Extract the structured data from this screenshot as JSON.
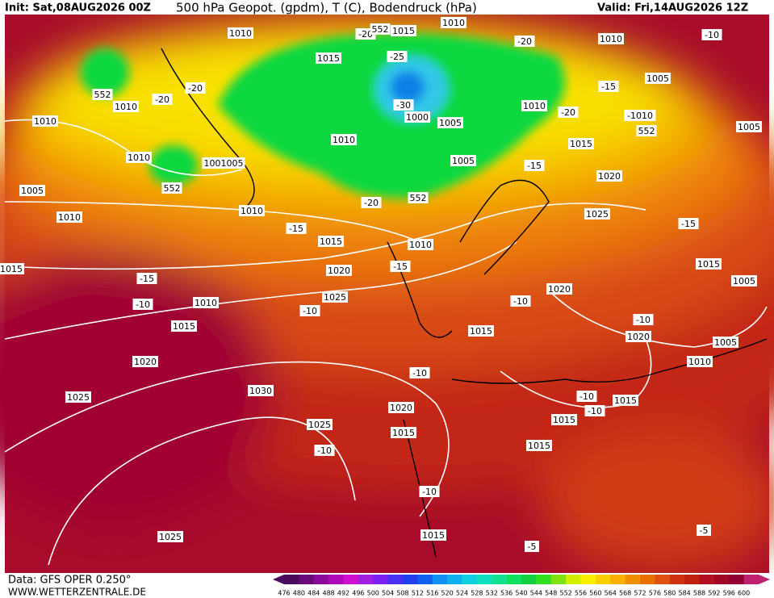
{
  "header": {
    "init": "Init: Sat,08AUG2026 00Z",
    "title": "500 hPa Geopot. (gpdm), T (C), Bodendruck (hPa)",
    "valid": "Valid: Fri,14AUG2026 12Z"
  },
  "map": {
    "labels": [
      "1010",
      "-20",
      "552",
      "1015",
      "1010",
      "-20",
      "1010",
      "-10",
      "-25",
      "1015",
      "552",
      "1010",
      "-20",
      "-20",
      "1010",
      "-30",
      "1000",
      "1005",
      "1010",
      "-20",
      "-15",
      "1005",
      "-1010",
      "552",
      "1005",
      "1010",
      "1015",
      "1010",
      "1001005",
      "1005",
      "-15",
      "552",
      "1020",
      "1005",
      "-20",
      "552",
      "1010",
      "1025",
      "1010",
      "-15",
      "-15",
      "1015",
      "1010",
      "1015",
      "-15",
      "1020",
      "1015",
      "-15",
      "1005",
      "1020",
      "1025",
      "-10",
      "-10",
      "1010",
      "-10",
      "-10",
      "1015",
      "1015",
      "1020",
      "1005",
      "1020",
      "1010",
      "-10",
      "1030",
      "-10",
      "1015",
      "1025",
      "-10",
      "1020",
      "1015",
      "1025",
      "1015",
      "-10",
      "1015",
      "-10",
      "1025",
      "1015",
      "-5",
      "-5"
    ]
  },
  "footer": {
    "source": "Data: GFS OPER 0.250°",
    "site": "WWW.WETTERZENTRALE.DE"
  },
  "colorbar": {
    "labels": [
      476,
      480,
      484,
      488,
      492,
      496,
      500,
      504,
      508,
      512,
      516,
      520,
      524,
      528,
      532,
      536,
      540,
      544,
      548,
      552,
      556,
      560,
      564,
      568,
      572,
      576,
      580,
      584,
      588,
      592,
      596,
      600
    ],
    "colors": [
      "#4b0a5a",
      "#6a0a7a",
      "#8c0a9a",
      "#b00ab8",
      "#d010d0",
      "#a020e0",
      "#7a20f0",
      "#4a30f0",
      "#2040f0",
      "#1060f0",
      "#1090f0",
      "#10b0f0",
      "#10d0e0",
      "#10e0c0",
      "#10e090",
      "#10e060",
      "#10d040",
      "#30e020",
      "#80e010",
      "#d0f000",
      "#f8f000",
      "#f8d000",
      "#f8b000",
      "#f09000",
      "#e87000",
      "#e05010",
      "#d03010",
      "#c02010",
      "#b01020",
      "#a00828",
      "#900030",
      "#c02070"
    ]
  }
}
